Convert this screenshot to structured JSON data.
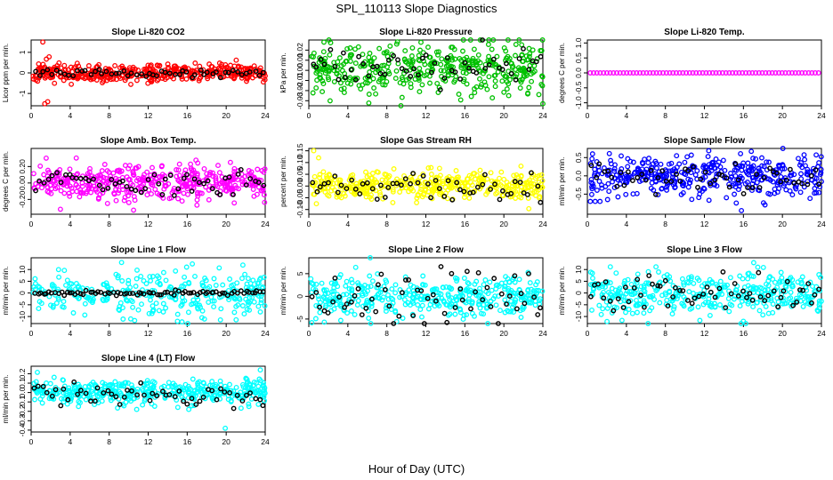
{
  "figure": {
    "title": "SPL_110113  Slope Diagnostics",
    "xlabel": "Hour of Day (UTC)"
  },
  "chart_data": [
    {
      "type": "scatter",
      "title": "Slope Li-820 CO2",
      "ylabel": "Licor ppm per min.",
      "color": "#ff0000",
      "xlim": [
        0,
        24
      ],
      "xticks": [
        0,
        4,
        8,
        12,
        16,
        20,
        24
      ],
      "ylim": [
        -1.6,
        1.6
      ],
      "yticks": [
        -1,
        0,
        1
      ],
      "ytick_labels": [
        "-1",
        "0",
        "1"
      ],
      "spread": 0.22,
      "n": 420,
      "bias": 0,
      "black_n": 55,
      "black_spread": 0.1,
      "seed": 11,
      "outliers": [
        [
          1.2,
          1.5
        ],
        [
          1.4,
          -1.5
        ],
        [
          1.7,
          -1.4
        ]
      ]
    },
    {
      "type": "scatter",
      "title": "Slope Li-820 Pressure",
      "ylabel": "kPa per min.",
      "color": "#00c000",
      "xlim": [
        0,
        24
      ],
      "xticks": [
        0,
        4,
        8,
        12,
        16,
        20,
        24
      ],
      "ylim": [
        -0.035,
        0.03
      ],
      "yticks": [
        -0.03,
        -0.02,
        -0.01,
        0,
        0.01,
        0.02
      ],
      "ytick_labels": [
        "-0.03",
        "-0.02",
        "-0.01",
        "0.00",
        "0.01",
        "0.02"
      ],
      "spread": 0.012,
      "n": 420,
      "bias": 0.003,
      "black_n": 55,
      "black_spread": 0.008,
      "seed": 23,
      "outliers": [
        [
          24,
          -0.033
        ],
        [
          17,
          -0.022
        ],
        [
          20.5,
          -0.025
        ]
      ]
    },
    {
      "type": "scatter",
      "title": "Slope Li-820 Temp.",
      "ylabel": "degrees C per min.",
      "color": "#ff00ff",
      "xlim": [
        0,
        24
      ],
      "xticks": [
        0,
        4,
        8,
        12,
        16,
        20,
        24
      ],
      "ylim": [
        -1.1,
        1.1
      ],
      "yticks": [
        -1,
        -0.5,
        0,
        0.5,
        1
      ],
      "ytick_labels": [
        "-1.0",
        "-0.5",
        "0.0",
        "0.5",
        "1.0"
      ],
      "spread": 0.0,
      "n": 70,
      "bias": 0,
      "black_n": 0,
      "black_spread": 0,
      "seed": 5,
      "uniform": true,
      "outliers": []
    },
    {
      "type": "scatter",
      "title": "Slope Amb. Box Temp.",
      "ylabel": "degrees C per min.",
      "color": "#ff00ff",
      "xlim": [
        0,
        24
      ],
      "xticks": [
        0,
        4,
        8,
        12,
        16,
        20,
        24
      ],
      "ylim": [
        -0.38,
        0.42
      ],
      "yticks": [
        -0.2,
        0,
        0.2
      ],
      "ytick_labels": [
        "-0.20",
        "0.00",
        "0.20"
      ],
      "spread": 0.1,
      "n": 420,
      "bias": 0,
      "black_n": 55,
      "black_spread": 0.07,
      "seed": 37,
      "outliers": [
        [
          10.5,
          -0.33
        ],
        [
          17,
          -0.27
        ],
        [
          3,
          -0.32
        ]
      ]
    },
    {
      "type": "scatter",
      "title": "Slope Gas Stream RH",
      "ylabel": "percent per min.",
      "color": "#ffff00",
      "xlim": [
        0,
        24
      ],
      "xticks": [
        0,
        4,
        8,
        12,
        16,
        20,
        24
      ],
      "ylim": [
        -0.12,
        0.16
      ],
      "yticks": [
        -0.1,
        -0.05,
        0,
        0.05,
        0.1,
        0.15
      ],
      "ytick_labels": [
        "-0.10",
        "-0.05",
        "0.00",
        "0.05",
        "0.10",
        "0.15"
      ],
      "spread": 0.03,
      "n": 420,
      "bias": 0,
      "black_n": 55,
      "black_spread": 0.03,
      "seed": 41,
      "outliers": [
        [
          0.5,
          0.15
        ],
        [
          1,
          0.12
        ]
      ]
    },
    {
      "type": "scatter",
      "title": "Slope Sample Flow",
      "ylabel": "ml/min per min.",
      "color": "#0000ff",
      "xlim": [
        0,
        24
      ],
      "xticks": [
        0,
        4,
        8,
        12,
        16,
        20,
        24
      ],
      "ylim": [
        -1.05,
        0.75
      ],
      "yticks": [
        -0.5,
        0,
        0.5
      ],
      "ytick_labels": [
        "-0.5",
        "0.0",
        "0.5"
      ],
      "spread": 0.28,
      "n": 420,
      "bias": 0,
      "black_n": 55,
      "black_spread": 0.2,
      "seed": 53,
      "outliers": [
        [
          0.3,
          -0.7
        ],
        [
          0.8,
          -0.7
        ],
        [
          1.3,
          -0.7
        ],
        [
          15.8,
          -0.95
        ]
      ]
    },
    {
      "type": "scatter",
      "title": "Slope Line 1 Flow",
      "ylabel": "ml/min per min.",
      "color": "#00ffff",
      "xlim": [
        0,
        24
      ],
      "xticks": [
        0,
        4,
        8,
        12,
        16,
        20,
        24
      ],
      "ylim": [
        -13,
        15
      ],
      "yticks": [
        -10,
        -5,
        0,
        5,
        10
      ],
      "ytick_labels": [
        "-10",
        "-5",
        "0",
        "5",
        "10"
      ],
      "spread": 5,
      "n": 300,
      "bias": 0,
      "black_n": 80,
      "black_spread": 0.5,
      "seed": 61,
      "outliers": [
        [
          15,
          -12
        ]
      ]
    },
    {
      "type": "scatter",
      "title": "Slope Line 2 Flow",
      "ylabel": "ml/min per min.",
      "color": "#00ffff",
      "xlim": [
        0,
        24
      ],
      "xticks": [
        0,
        4,
        8,
        12,
        16,
        20,
        24
      ],
      "ylim": [
        -6,
        8.5
      ],
      "yticks": [
        -5,
        0,
        5
      ],
      "ytick_labels": [
        "-5",
        "0",
        "5"
      ],
      "spread": 2.2,
      "n": 400,
      "bias": 0,
      "black_n": 60,
      "black_spread": 2.5,
      "seed": 71,
      "outliers": [
        [
          6.3,
          8.5
        ],
        [
          0.3,
          -5.8
        ]
      ]
    },
    {
      "type": "scatter",
      "title": "Slope Line 3 Flow",
      "ylabel": "ml/min per min.",
      "color": "#00ffff",
      "xlim": [
        0,
        24
      ],
      "xticks": [
        0,
        4,
        8,
        12,
        16,
        20,
        24
      ],
      "ylim": [
        -13,
        15
      ],
      "yticks": [
        -10,
        -5,
        0,
        5,
        10
      ],
      "ytick_labels": [
        "-10",
        "-5",
        "0",
        "5",
        "10"
      ],
      "spread": 4.5,
      "n": 400,
      "bias": 0,
      "black_n": 60,
      "black_spread": 4.5,
      "seed": 83,
      "outliers": [
        [
          16,
          -12
        ]
      ]
    },
    {
      "type": "scatter",
      "title": "Slope Line 4 (LT) Flow",
      "ylabel": "ml/min per min.",
      "color": "#00ffff",
      "xlim": [
        0,
        24
      ],
      "xticks": [
        0,
        4,
        8,
        12,
        16,
        20,
        24
      ],
      "ylim": [
        -0.42,
        0.28
      ],
      "yticks": [
        -0.4,
        -0.3,
        -0.2,
        -0.1,
        0,
        0.1,
        0.2
      ],
      "ytick_labels": [
        "-0.4",
        "-0.3",
        "-0.2",
        "-0.1",
        "0.0",
        "0.1",
        "0.2"
      ],
      "spread": 0.07,
      "n": 420,
      "bias": 0,
      "black_n": 55,
      "black_spread": 0.07,
      "seed": 97,
      "outliers": [
        [
          19.9,
          -0.38
        ],
        [
          23.5,
          0.24
        ]
      ]
    }
  ]
}
